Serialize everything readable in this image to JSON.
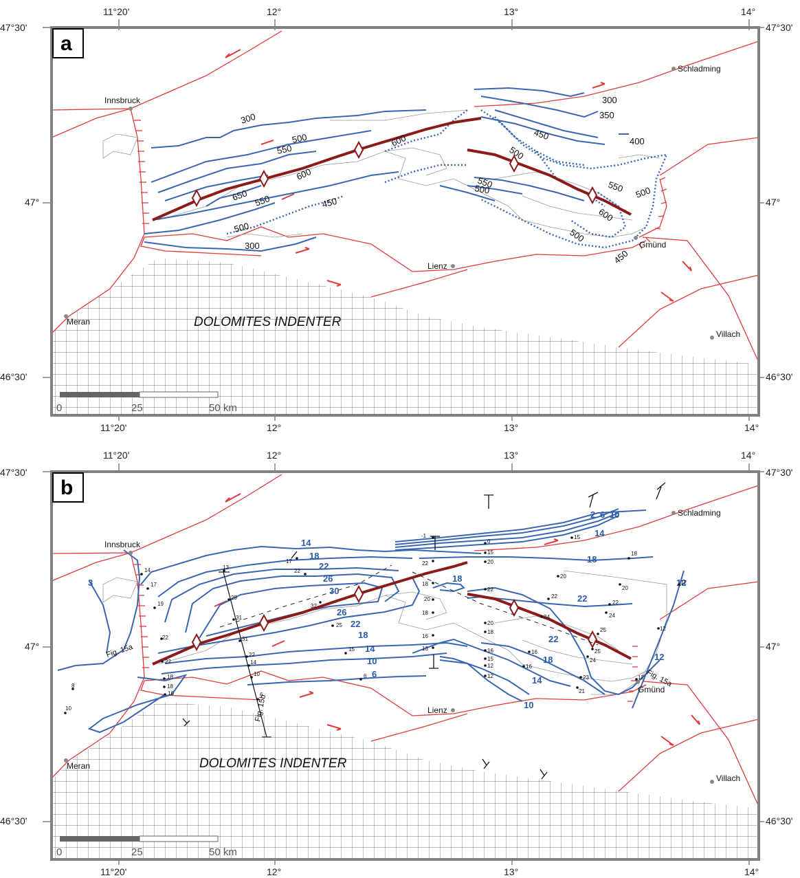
{
  "colors": {
    "fault": "#e03a3a",
    "isoline": "#3a66b0",
    "axis": "#8b1a1a",
    "frame": "#808080",
    "grid": "#555555"
  },
  "panel_a": {
    "letter": "a",
    "top_ticks": [
      "11°20'",
      "12°",
      "13°",
      "14°"
    ],
    "bottom_ticks": [
      "11°20'",
      "12°",
      "13°",
      "14°"
    ],
    "left_ticks": [
      "47°30'",
      "47°",
      "46°30'"
    ],
    "right_ticks": [
      "47°30'",
      "47°",
      "46°30'"
    ],
    "cities": [
      "Innsbruck",
      "Schladming",
      "Gmünd",
      "Lienz",
      "Meran",
      "Villach"
    ],
    "indenter_label": "DOLOMITES INDENTER",
    "scale": [
      "0",
      "25",
      "50 km"
    ],
    "isolines": [
      "300",
      "500",
      "550",
      "600",
      "650",
      "550",
      "600",
      "450",
      "500",
      "300",
      "500",
      "450",
      "550",
      "500",
      "300",
      "350",
      "400",
      "500",
      "550",
      "500",
      "600",
      "500",
      "450"
    ]
  },
  "panel_b": {
    "letter": "b",
    "top_ticks": [
      "11°20'",
      "12°",
      "13°",
      "14°"
    ],
    "bottom_ticks": [
      "11°20'",
      "12°",
      "13°",
      "14°"
    ],
    "left_ticks": [
      "47°30'",
      "47°",
      "46°30'"
    ],
    "right_ticks": [
      "47°30'",
      "47°",
      "46°30'"
    ],
    "cities": [
      "Innsbruck",
      "Schladming",
      "Gmünd",
      "Lienz",
      "Meran",
      "Villach"
    ],
    "indenter_label": "DOLOMITES INDENTER",
    "scale": [
      "0",
      "25",
      "50 km"
    ],
    "iso_labels": [
      "3",
      "14",
      "18",
      "22",
      "26",
      "30",
      "26",
      "22",
      "18",
      "14",
      "10",
      "6",
      "18",
      "2",
      "6",
      "10",
      "14",
      "18",
      "22",
      "22",
      "18",
      "14",
      "10",
      "12",
      "12"
    ],
    "sample_values": [
      "14",
      "17",
      "19",
      "22",
      "22",
      "18",
      "18",
      "16",
      "13",
      "29",
      "31",
      "31",
      "22",
      "14",
      "10",
      "6",
      "17",
      "22",
      "32",
      "25",
      "15",
      "6",
      "-1",
      "22",
      "18",
      "20",
      "18",
      "16",
      "13",
      "0",
      "15",
      "20",
      "22",
      "20",
      "18",
      "16",
      "15",
      "12",
      "12",
      "22",
      "20",
      "24",
      "16",
      "16",
      "15",
      "18",
      "25",
      "25",
      "24",
      "23",
      "21",
      "22",
      "24",
      "20",
      "12",
      "12",
      "12",
      "8",
      "10"
    ],
    "profile_labels": [
      "Fig. 15a",
      "Fig. 15b",
      "Fig. 15a"
    ]
  }
}
